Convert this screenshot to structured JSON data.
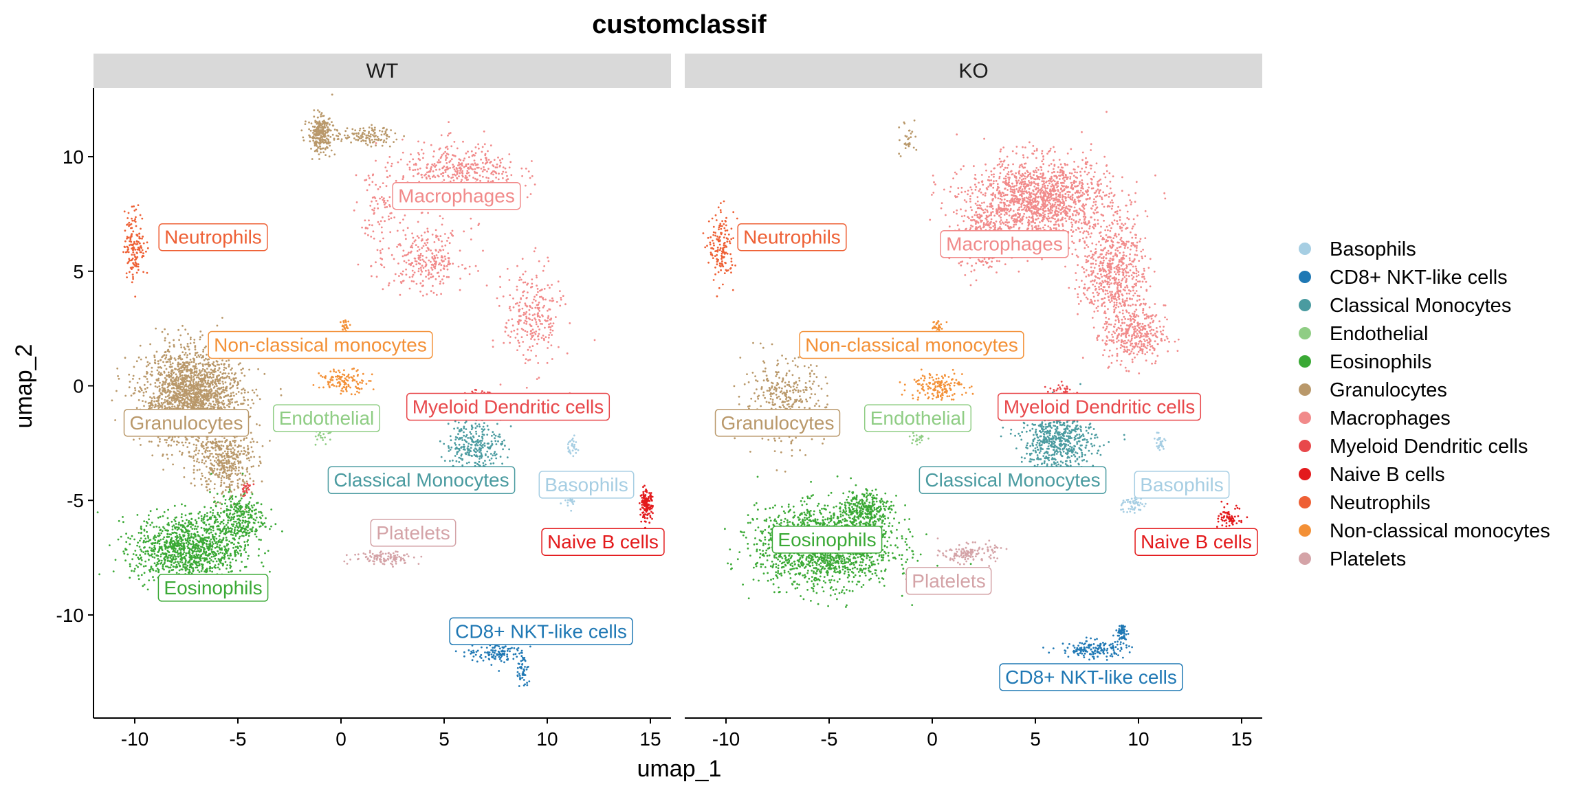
{
  "chart_data": {
    "type": "scatter",
    "title": "customclassif",
    "xlabel": "umap_1",
    "ylabel": "umap_2",
    "xlim": [
      -12,
      16
    ],
    "ylim": [
      -14.5,
      13
    ],
    "x_ticks": [
      -10,
      -5,
      0,
      5,
      10,
      15
    ],
    "y_ticks": [
      10,
      5,
      0,
      -5,
      -10
    ],
    "x_tick_labels": [
      "-10",
      "-5",
      "0",
      "5",
      "10",
      "15"
    ],
    "y_tick_labels": [
      "10",
      "5",
      "0",
      "-5",
      "-10"
    ],
    "grid": false,
    "legend_position": "right",
    "panels": [
      {
        "name": "WT",
        "labels": [
          {
            "text": "Neutrophils",
            "x": -6.2,
            "y": 6.5,
            "category": "Neutrophils"
          },
          {
            "text": "Macrophages",
            "x": 5.6,
            "y": 8.3,
            "category": "Macrophages"
          },
          {
            "text": "Non-classical monocytes",
            "x": -1.0,
            "y": 1.8,
            "category": "Non-classical monocytes"
          },
          {
            "text": "Granulocytes",
            "x": -7.5,
            "y": -1.6,
            "category": "Granulocytes"
          },
          {
            "text": "Endothelial",
            "x": -0.7,
            "y": -1.4,
            "category": "Endothelial"
          },
          {
            "text": "Myeloid Dendritic cells",
            "x": 8.1,
            "y": -0.9,
            "category": "Myeloid Dendritic cells"
          },
          {
            "text": "Classical Monocytes",
            "x": 3.9,
            "y": -4.1,
            "category": "Classical Monocytes"
          },
          {
            "text": "Basophils",
            "x": 11.9,
            "y": -4.3,
            "category": "Basophils"
          },
          {
            "text": "Platelets",
            "x": 3.5,
            "y": -6.4,
            "category": "Platelets"
          },
          {
            "text": "Naive B cells",
            "x": 12.7,
            "y": -6.8,
            "category": "Naive B cells"
          },
          {
            "text": "Eosinophils",
            "x": -6.2,
            "y": -8.8,
            "category": "Eosinophils"
          },
          {
            "text": "CD8+ NKT-like cells",
            "x": 9.7,
            "y": -10.7,
            "category": "CD8+ NKT-like cells"
          }
        ],
        "clusters": [
          {
            "category": "Granulocytes",
            "cx": -7.2,
            "cy": -0.5,
            "rx": 2.4,
            "ry": 2.1,
            "n": 1900
          },
          {
            "category": "Granulocytes",
            "cx": -5.6,
            "cy": -3.3,
            "rx": 1.3,
            "ry": 1.5,
            "n": 400
          },
          {
            "category": "Granulocytes",
            "cx": -1.0,
            "cy": 11.0,
            "rx": 0.6,
            "ry": 0.8,
            "n": 260
          },
          {
            "category": "Granulocytes",
            "cx": 1.2,
            "cy": 10.9,
            "rx": 1.5,
            "ry": 0.4,
            "n": 120
          },
          {
            "category": "Eosinophils",
            "cx": -7.4,
            "cy": -7.1,
            "rx": 2.6,
            "ry": 1.5,
            "n": 1100
          },
          {
            "category": "Eosinophils",
            "cx": -5.0,
            "cy": -5.8,
            "rx": 1.3,
            "ry": 1.1,
            "n": 300
          },
          {
            "category": "Neutrophils",
            "cx": -10.0,
            "cy": 6.2,
            "rx": 0.5,
            "ry": 1.5,
            "n": 150
          },
          {
            "category": "Macrophages",
            "cx": 5.8,
            "cy": 9.2,
            "rx": 2.8,
            "ry": 1.4,
            "n": 450
          },
          {
            "category": "Macrophages",
            "cx": 4.2,
            "cy": 5.5,
            "rx": 1.8,
            "ry": 1.3,
            "n": 250
          },
          {
            "category": "Macrophages",
            "cx": 9.3,
            "cy": 3.0,
            "rx": 1.4,
            "ry": 2.2,
            "n": 260
          },
          {
            "category": "Macrophages",
            "cx": 2.0,
            "cy": 7.5,
            "rx": 1.2,
            "ry": 2.5,
            "n": 120
          },
          {
            "category": "Non-classical monocytes",
            "cx": 0.2,
            "cy": 0.2,
            "rx": 1.2,
            "ry": 0.5,
            "n": 120
          },
          {
            "category": "Non-classical monocytes",
            "cx": 0.2,
            "cy": 2.6,
            "rx": 0.2,
            "ry": 0.3,
            "n": 25
          },
          {
            "category": "Endothelial",
            "cx": -0.9,
            "cy": -2.1,
            "rx": 0.5,
            "ry": 0.4,
            "n": 25
          },
          {
            "category": "Classical Monocytes",
            "cx": 6.5,
            "cy": -2.6,
            "rx": 1.4,
            "ry": 1.2,
            "n": 280
          },
          {
            "category": "Myeloid Dendritic cells",
            "cx": 6.6,
            "cy": -0.4,
            "rx": 0.6,
            "ry": 0.3,
            "n": 25
          },
          {
            "category": "Myeloid Dendritic cells",
            "cx": -4.6,
            "cy": -4.5,
            "rx": 0.3,
            "ry": 0.3,
            "n": 25
          },
          {
            "category": "Basophils",
            "cx": 11.2,
            "cy": -2.6,
            "rx": 0.3,
            "ry": 0.4,
            "n": 30
          },
          {
            "category": "Basophils",
            "cx": 11.0,
            "cy": -5.1,
            "rx": 0.4,
            "ry": 0.3,
            "n": 20
          },
          {
            "category": "Naive B cells",
            "cx": 14.8,
            "cy": -5.2,
            "rx": 0.3,
            "ry": 0.6,
            "n": 150
          },
          {
            "category": "Platelets",
            "cx": 2.2,
            "cy": -7.5,
            "rx": 1.6,
            "ry": 0.3,
            "n": 110
          },
          {
            "category": "CD8+ NKT-like cells",
            "cx": 7.6,
            "cy": -11.6,
            "rx": 1.5,
            "ry": 0.5,
            "n": 130
          },
          {
            "category": "CD8+ NKT-like cells",
            "cx": 8.8,
            "cy": -12.5,
            "rx": 0.3,
            "ry": 0.8,
            "n": 50
          }
        ]
      },
      {
        "name": "KO",
        "labels": [
          {
            "text": "Neutrophils",
            "x": -6.8,
            "y": 6.5,
            "category": "Neutrophils"
          },
          {
            "text": "Macrophages",
            "x": 3.5,
            "y": 6.2,
            "category": "Macrophages"
          },
          {
            "text": "Non-classical monocytes",
            "x": -1.0,
            "y": 1.8,
            "category": "Non-classical monocytes"
          },
          {
            "text": "Granulocytes",
            "x": -7.5,
            "y": -1.6,
            "category": "Granulocytes"
          },
          {
            "text": "Endothelial",
            "x": -0.7,
            "y": -1.4,
            "category": "Endothelial"
          },
          {
            "text": "Myeloid Dendritic cells",
            "x": 8.1,
            "y": -0.9,
            "category": "Myeloid Dendritic cells"
          },
          {
            "text": "Classical Monocytes",
            "x": 3.9,
            "y": -4.1,
            "category": "Classical Monocytes"
          },
          {
            "text": "Basophils",
            "x": 12.1,
            "y": -4.3,
            "category": "Basophils"
          },
          {
            "text": "Naive B cells",
            "x": 12.8,
            "y": -6.8,
            "category": "Naive B cells"
          },
          {
            "text": "Eosinophils",
            "x": -5.1,
            "y": -6.7,
            "category": "Eosinophils"
          },
          {
            "text": "Platelets",
            "x": 0.8,
            "y": -8.5,
            "category": "Platelets"
          },
          {
            "text": "CD8+ NKT-like cells",
            "x": 7.7,
            "y": -12.7,
            "category": "CD8+ NKT-like cells"
          }
        ],
        "clusters": [
          {
            "category": "Macrophages",
            "cx": 5.2,
            "cy": 8.1,
            "rx": 3.4,
            "ry": 1.8,
            "n": 1500
          },
          {
            "category": "Macrophages",
            "cx": 8.8,
            "cy": 5.0,
            "rx": 1.6,
            "ry": 2.2,
            "n": 600
          },
          {
            "category": "Macrophages",
            "cx": 9.8,
            "cy": 2.2,
            "rx": 1.5,
            "ry": 1.3,
            "n": 350
          },
          {
            "category": "Macrophages",
            "cx": 2.5,
            "cy": 6.5,
            "rx": 1.2,
            "ry": 1.4,
            "n": 300
          },
          {
            "category": "Eosinophils",
            "cx": -5.2,
            "cy": -7.0,
            "rx": 3.3,
            "ry": 1.7,
            "n": 1700
          },
          {
            "category": "Eosinophils",
            "cx": -3.2,
            "cy": -5.4,
            "rx": 1.2,
            "ry": 0.9,
            "n": 300
          },
          {
            "category": "Granulocytes",
            "cx": -7.2,
            "cy": -0.7,
            "rx": 2.0,
            "ry": 1.8,
            "n": 350
          },
          {
            "category": "Granulocytes",
            "cx": -1.2,
            "cy": 10.8,
            "rx": 0.5,
            "ry": 0.9,
            "n": 30
          },
          {
            "category": "Neutrophils",
            "cx": -10.2,
            "cy": 6.0,
            "rx": 0.6,
            "ry": 1.5,
            "n": 150
          },
          {
            "category": "Classical Monocytes",
            "cx": 6.1,
            "cy": -2.4,
            "rx": 1.8,
            "ry": 1.5,
            "n": 650
          },
          {
            "category": "Myeloid Dendritic cells",
            "cx": 6.3,
            "cy": -0.3,
            "rx": 0.7,
            "ry": 0.4,
            "n": 50
          },
          {
            "category": "Non-classical monocytes",
            "cx": 0.2,
            "cy": 0.0,
            "rx": 1.3,
            "ry": 0.6,
            "n": 150
          },
          {
            "category": "Non-classical monocytes",
            "cx": 0.2,
            "cy": 2.6,
            "rx": 0.3,
            "ry": 0.3,
            "n": 30
          },
          {
            "category": "Endothelial",
            "cx": -0.7,
            "cy": -2.3,
            "rx": 0.4,
            "ry": 0.3,
            "n": 20
          },
          {
            "category": "Basophils",
            "cx": 11.0,
            "cy": -2.5,
            "rx": 0.3,
            "ry": 0.4,
            "n": 30
          },
          {
            "category": "Basophils",
            "cx": 9.7,
            "cy": -5.2,
            "rx": 0.6,
            "ry": 0.4,
            "n": 50
          },
          {
            "category": "Naive B cells",
            "cx": 14.5,
            "cy": -5.8,
            "rx": 0.6,
            "ry": 0.5,
            "n": 70
          },
          {
            "category": "Platelets",
            "cx": 1.8,
            "cy": -7.3,
            "rx": 1.3,
            "ry": 0.4,
            "n": 130
          },
          {
            "category": "CD8+ NKT-like cells",
            "cx": 7.8,
            "cy": -11.5,
            "rx": 1.6,
            "ry": 0.4,
            "n": 150
          },
          {
            "category": "CD8+ NKT-like cells",
            "cx": 9.2,
            "cy": -10.8,
            "rx": 0.3,
            "ry": 0.5,
            "n": 60
          }
        ]
      }
    ],
    "legend": [
      {
        "name": "Basophils",
        "color": "#a6cee3"
      },
      {
        "name": "CD8+ NKT-like cells",
        "color": "#1f78b4"
      },
      {
        "name": "Classical Monocytes",
        "color": "#4a9ba0"
      },
      {
        "name": "Endothelial",
        "color": "#8fcd84"
      },
      {
        "name": "Eosinophils",
        "color": "#3aa935"
      },
      {
        "name": "Granulocytes",
        "color": "#b9986a"
      },
      {
        "name": "Macrophages",
        "color": "#f18a8a"
      },
      {
        "name": "Myeloid Dendritic cells",
        "color": "#e8484b"
      },
      {
        "name": "Naive B cells",
        "color": "#e31a1c"
      },
      {
        "name": "Neutrophils",
        "color": "#ee6035"
      },
      {
        "name": "Non-classical monocytes",
        "color": "#f39036"
      },
      {
        "name": "Platelets",
        "color": "#d4a3a7"
      }
    ]
  }
}
